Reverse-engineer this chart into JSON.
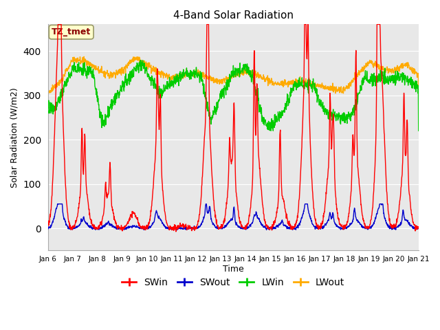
{
  "title": "4-Band Solar Radiation",
  "xlabel": "Time",
  "ylabel": "Solar Radiation (W/m2)",
  "ylim": [
    -50,
    460
  ],
  "xlim": [
    0,
    15
  ],
  "bg_color": "#e8e8e8",
  "annotation_text": "TZ_tmet",
  "annotation_color": "#8B0000",
  "annotation_bg": "#ffffcc",
  "legend_entries": [
    "SWin",
    "SWout",
    "LWin",
    "LWout"
  ],
  "legend_colors": [
    "#ff0000",
    "#0000cc",
    "#00cc00",
    "#ffaa00"
  ],
  "tick_labels": [
    "Jan 6",
    "Jan 7",
    "Jan 8",
    "Jan 9",
    "Jan 10",
    "Jan 11",
    "Jan 12",
    "Jan 13",
    "Jan 14",
    "Jan 15",
    "Jan 16",
    "Jan 17",
    "Jan 18",
    "Jan 19",
    "Jan 20",
    "Jan 21"
  ],
  "num_points": 1500
}
